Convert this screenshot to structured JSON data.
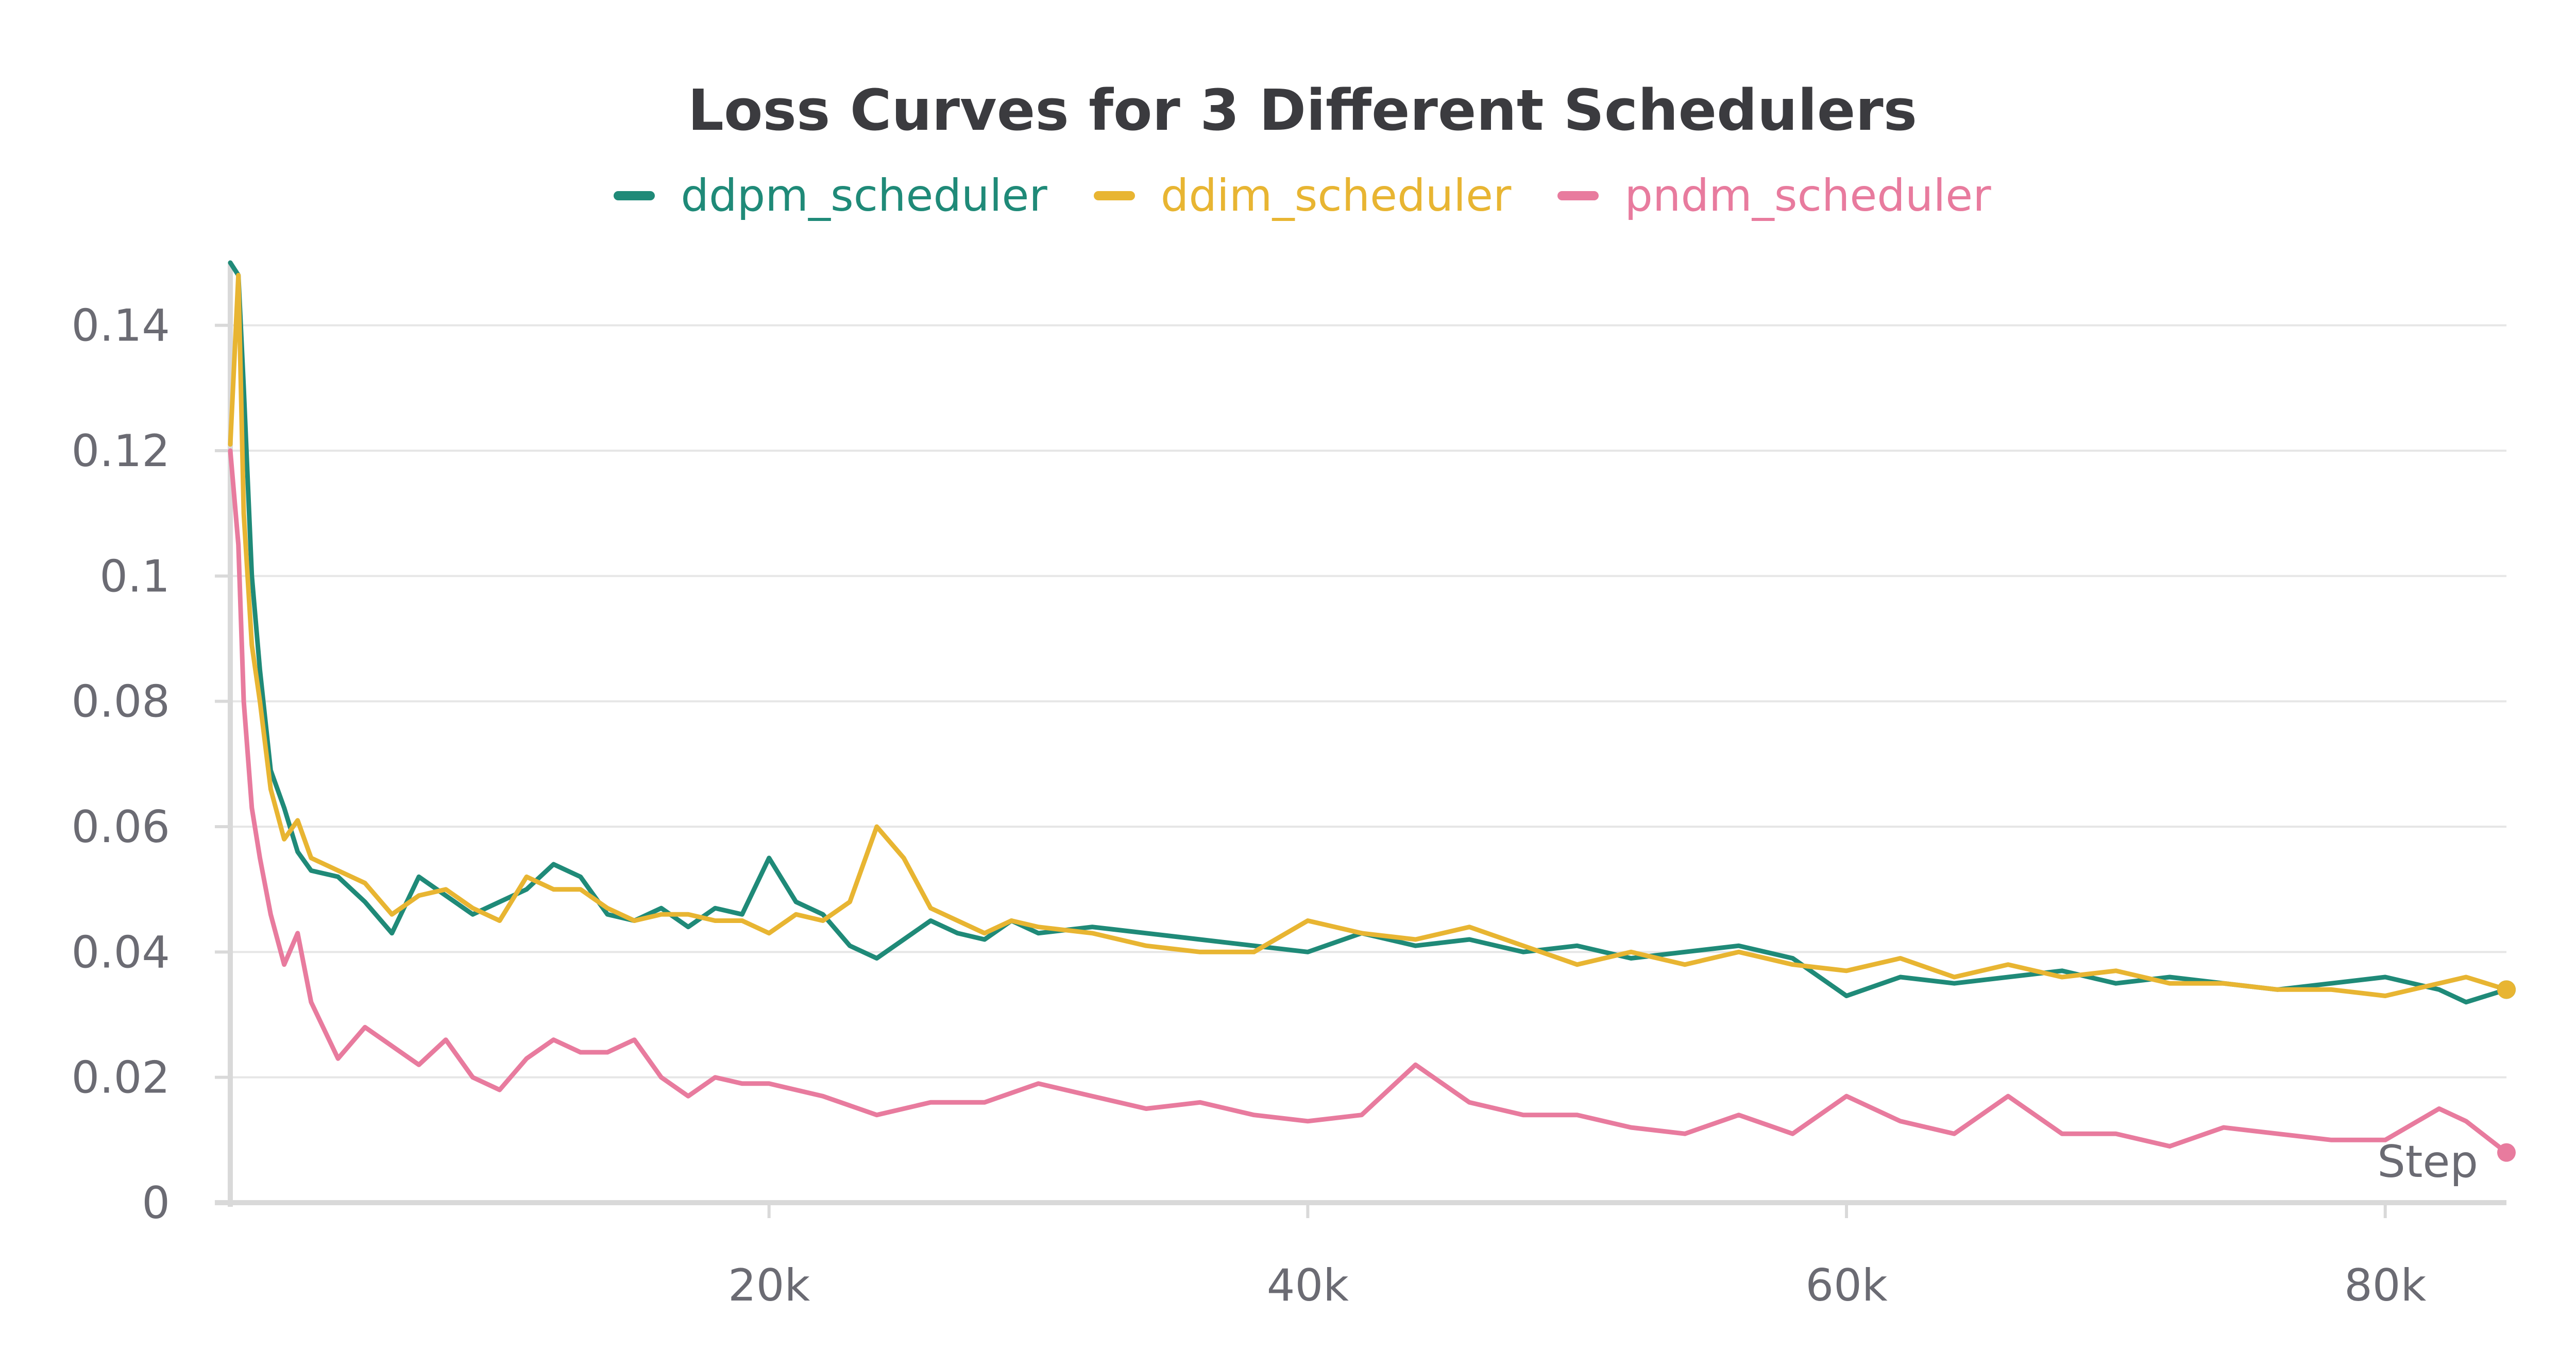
{
  "chart_data": {
    "type": "line",
    "title": "Loss Curves for 3 Different Schedulers",
    "xlabel": "Step",
    "ylabel": "",
    "xlim": [
      0,
      84500
    ],
    "ylim": [
      0,
      0.15
    ],
    "x_ticks": [
      20000,
      40000,
      60000,
      80000
    ],
    "x_tick_labels": [
      "20k",
      "40k",
      "60k",
      "80k"
    ],
    "y_ticks": [
      0,
      0.02,
      0.04,
      0.06,
      0.08,
      0.1,
      0.12,
      0.14
    ],
    "y_tick_labels": [
      "0",
      "0.02",
      "0.04",
      "0.06",
      "0.08",
      "0.1",
      "0.12",
      "0.14"
    ],
    "grid": true,
    "legend_position": "top-center",
    "series": [
      {
        "name": "ddpm_scheduler",
        "color": "#1f8a78",
        "x": [
          0,
          300,
          500,
          800,
          1100,
          1500,
          2000,
          2500,
          3000,
          4000,
          5000,
          6000,
          7000,
          8000,
          9000,
          10000,
          11000,
          12000,
          13000,
          14000,
          15000,
          16000,
          17000,
          18000,
          19000,
          20000,
          21000,
          22000,
          23000,
          24000,
          25000,
          26000,
          27000,
          28000,
          29000,
          30000,
          32000,
          34000,
          36000,
          38000,
          40000,
          42000,
          44000,
          46000,
          48000,
          50000,
          52000,
          54000,
          56000,
          58000,
          60000,
          62000,
          64000,
          66000,
          68000,
          70000,
          72000,
          74000,
          76000,
          78000,
          80000,
          82000,
          83000,
          84500
        ],
        "y": [
          0.15,
          0.148,
          0.13,
          0.1,
          0.085,
          0.069,
          0.063,
          0.056,
          0.053,
          0.052,
          0.048,
          0.043,
          0.052,
          0.049,
          0.046,
          0.048,
          0.05,
          0.054,
          0.052,
          0.046,
          0.045,
          0.047,
          0.044,
          0.047,
          0.046,
          0.055,
          0.048,
          0.046,
          0.041,
          0.039,
          0.042,
          0.045,
          0.043,
          0.042,
          0.045,
          0.043,
          0.044,
          0.043,
          0.042,
          0.041,
          0.04,
          0.043,
          0.041,
          0.042,
          0.04,
          0.041,
          0.039,
          0.04,
          0.041,
          0.039,
          0.033,
          0.036,
          0.035,
          0.036,
          0.037,
          0.035,
          0.036,
          0.035,
          0.034,
          0.035,
          0.036,
          0.034,
          0.032,
          0.034
        ]
      },
      {
        "name": "ddim_scheduler",
        "color": "#e8b532",
        "x": [
          0,
          300,
          500,
          800,
          1100,
          1500,
          2000,
          2500,
          3000,
          4000,
          5000,
          6000,
          7000,
          8000,
          9000,
          10000,
          11000,
          12000,
          13000,
          14000,
          15000,
          16000,
          17000,
          18000,
          19000,
          20000,
          21000,
          22000,
          23000,
          24000,
          25000,
          26000,
          27000,
          28000,
          29000,
          30000,
          32000,
          34000,
          36000,
          38000,
          40000,
          42000,
          44000,
          46000,
          48000,
          50000,
          52000,
          54000,
          56000,
          58000,
          60000,
          62000,
          64000,
          66000,
          68000,
          70000,
          72000,
          74000,
          76000,
          78000,
          80000,
          82000,
          83000,
          84500
        ],
        "y": [
          0.121,
          0.148,
          0.11,
          0.089,
          0.08,
          0.066,
          0.058,
          0.061,
          0.055,
          0.053,
          0.051,
          0.046,
          0.049,
          0.05,
          0.047,
          0.045,
          0.052,
          0.05,
          0.05,
          0.047,
          0.045,
          0.046,
          0.046,
          0.045,
          0.045,
          0.043,
          0.046,
          0.045,
          0.048,
          0.06,
          0.055,
          0.047,
          0.045,
          0.043,
          0.045,
          0.044,
          0.043,
          0.041,
          0.04,
          0.04,
          0.045,
          0.043,
          0.042,
          0.044,
          0.041,
          0.038,
          0.04,
          0.038,
          0.04,
          0.038,
          0.037,
          0.039,
          0.036,
          0.038,
          0.036,
          0.037,
          0.035,
          0.035,
          0.034,
          0.034,
          0.033,
          0.035,
          0.036,
          0.034
        ]
      },
      {
        "name": "pndm_scheduler",
        "color": "#e87b9e",
        "x": [
          0,
          300,
          500,
          800,
          1100,
          1500,
          2000,
          2500,
          3000,
          4000,
          5000,
          6000,
          7000,
          8000,
          9000,
          10000,
          11000,
          12000,
          13000,
          14000,
          15000,
          16000,
          17000,
          18000,
          19000,
          20000,
          22000,
          24000,
          26000,
          28000,
          30000,
          32000,
          34000,
          36000,
          38000,
          40000,
          42000,
          44000,
          46000,
          48000,
          50000,
          52000,
          54000,
          56000,
          58000,
          60000,
          62000,
          64000,
          66000,
          68000,
          70000,
          72000,
          74000,
          76000,
          78000,
          80000,
          82000,
          83000,
          84500
        ],
        "y": [
          0.12,
          0.105,
          0.08,
          0.063,
          0.055,
          0.046,
          0.038,
          0.043,
          0.032,
          0.023,
          0.028,
          0.025,
          0.022,
          0.026,
          0.02,
          0.018,
          0.023,
          0.026,
          0.024,
          0.024,
          0.026,
          0.02,
          0.017,
          0.02,
          0.019,
          0.019,
          0.017,
          0.014,
          0.016,
          0.016,
          0.019,
          0.017,
          0.015,
          0.016,
          0.014,
          0.013,
          0.014,
          0.022,
          0.016,
          0.014,
          0.014,
          0.012,
          0.011,
          0.014,
          0.011,
          0.017,
          0.013,
          0.011,
          0.017,
          0.011,
          0.011,
          0.009,
          0.012,
          0.011,
          0.01,
          0.01,
          0.015,
          0.013,
          0.008
        ]
      }
    ]
  }
}
